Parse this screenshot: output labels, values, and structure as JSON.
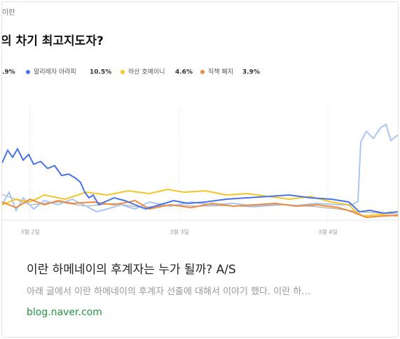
{
  "thumbnail": {
    "kicker": "이란",
    "headline": "의 차기 최고지도자?",
    "legend": [
      {
        "label": "",
        "value": ".9%"
      },
      {
        "label": "알리레자 아라피",
        "value": "10.5%"
      },
      {
        "label": "하산 호메이니",
        "value": "4.6%"
      },
      {
        "label": "직책 폐지",
        "value": "3.9%"
      }
    ],
    "x_labels": [
      "3월 2일",
      "3월 3일",
      "3월 4일"
    ]
  },
  "card": {
    "title": "이란 하메네이의 후계자는 누가 될까? A/S",
    "description": "아래 글에서 이란 하메네이의 후계자 선출에 대해서 이야기 했다. 이란 하…",
    "url": "blog.naver.com"
  }
}
